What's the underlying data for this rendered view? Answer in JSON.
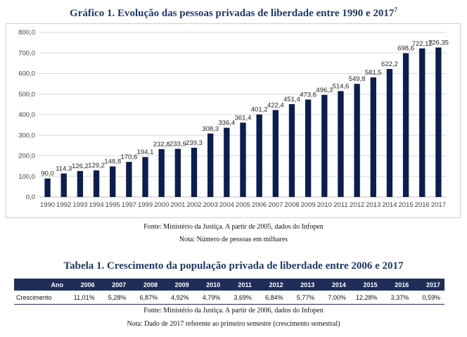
{
  "chart_title": "Gráfico 1. Evolução das pessoas privadas de liberdade entre 1990 e 2017",
  "chart_title_footnote": "7",
  "chart_data": {
    "type": "bar",
    "title": "Gráfico 1. Evolução das pessoas privadas de liberdade entre 1990 e 2017",
    "categories": [
      "1990",
      "1992",
      "1993",
      "1994",
      "1995",
      "1997",
      "1999",
      "2000",
      "2001",
      "2002",
      "2003",
      "2004",
      "2005",
      "2006",
      "2007",
      "2008",
      "2009",
      "2010",
      "2011",
      "2012",
      "2013",
      "2014",
      "2015",
      "2016",
      "2017"
    ],
    "values": [
      90.0,
      114.3,
      126.2,
      129.2,
      148.8,
      170.6,
      194.1,
      232.8,
      233.9,
      239.3,
      308.3,
      336.4,
      361.4,
      401.2,
      422.4,
      451.4,
      473.6,
      496.3,
      514.6,
      549.8,
      581.5,
      622.2,
      698.6,
      722.12,
      726.35
    ],
    "value_labels": [
      "90,0",
      "114,3",
      "126,2",
      "129,2",
      "148,8",
      "170,6",
      "194,1",
      "232,8",
      "233,9",
      "239,3",
      "308,3",
      "336,4",
      "361,4",
      "401,2",
      "422,4",
      "451,4",
      "473,6",
      "496,3",
      "514,6",
      "549,8",
      "581,5",
      "622,2",
      "698,6",
      "722,12",
      "726,35"
    ],
    "y_ticks": [
      0,
      100,
      200,
      300,
      400,
      500,
      600,
      700,
      800
    ],
    "y_tick_labels": [
      "0,0",
      "100,0",
      "200,0",
      "300,0",
      "400,0",
      "500,0",
      "600,0",
      "700,0",
      "800,0"
    ],
    "ylim": [
      0,
      800
    ],
    "xlabel": "",
    "ylabel": "",
    "grid": true,
    "bar_color": "#0d1e4c",
    "grid_color": "#d9d9d9"
  },
  "chart_source": "Fonte: Ministério da Justiça. A partir de 2005, dados do Infopen",
  "chart_note": "Nota: Número de pessoas em milhares",
  "table_title": "Tabela 1. Crescimento da população privada de liberdade entre 2006 e 2017",
  "table": {
    "header_label": "Ano",
    "years": [
      "2006",
      "2007",
      "2008",
      "2009",
      "2010",
      "2011",
      "2012",
      "2013",
      "2014",
      "2015",
      "2016",
      "2017"
    ],
    "row_label": "Crescimento",
    "values": [
      "11,01%",
      "5,28%",
      "6,87%",
      "4,92%",
      "4,79%",
      "3,69%",
      "6,84%",
      "5,77%",
      "7,00%",
      "12,28%",
      "3,37%",
      "0,59%"
    ]
  },
  "table_source": "Fonte: Ministério da Justiça. A partir de 2006, dados do Infopen",
  "table_note": "Nota: Dado de 2017 referente ao primeiro semestre (crescimento semestral)",
  "colors": {
    "title": "#1f3864",
    "header_bg": "#1f2d57"
  }
}
